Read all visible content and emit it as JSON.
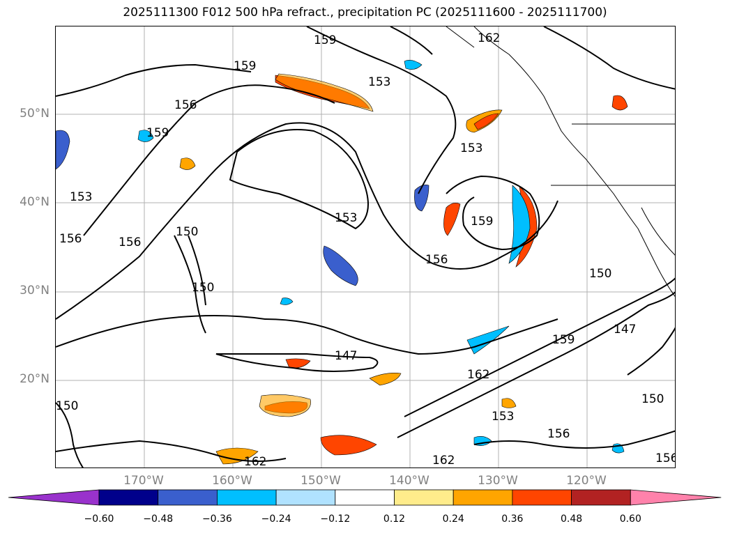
{
  "title": "2025111300 F012 500 hPa refract., precipitation PC (2025111600 - 2025111700)",
  "lat_labels": [
    "50°N",
    "40°N",
    "30°N",
    "20°N"
  ],
  "lon_labels": [
    "170°W",
    "160°W",
    "150°W",
    "140°W",
    "130°W",
    "120°W"
  ],
  "contour_labels": [
    "159",
    "162",
    "153",
    "159",
    "156",
    "159",
    "153",
    "153",
    "156",
    "150",
    "156",
    "150",
    "153",
    "159",
    "156",
    "150",
    "147",
    "162",
    "159",
    "147",
    "150",
    "150",
    "162",
    "153",
    "156",
    "162",
    "156"
  ],
  "colorbar": {
    "ticks": [
      "−0.60",
      "−0.48",
      "−0.36",
      "−0.24",
      "−0.12",
      "0.12",
      "0.24",
      "0.36",
      "0.48",
      "0.60"
    ],
    "colors": [
      "#9932cc",
      "#00008b",
      "#3a5fcd",
      "#00bfff",
      "#b0e2ff",
      "#ffffff",
      "#ffec8b",
      "#ffa500",
      "#ff4500",
      "#b22222",
      "#ff82ab"
    ]
  }
}
